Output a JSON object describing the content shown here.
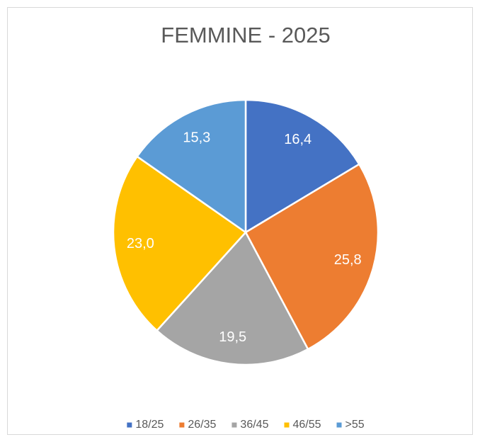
{
  "chart_data": {
    "type": "pie",
    "title": "FEMMINE - 2025",
    "categories": [
      "18/25",
      "26/35",
      "36/45",
      "46/55",
      ">55"
    ],
    "values": [
      16.4,
      25.8,
      19.5,
      23.0,
      15.3
    ],
    "value_labels": [
      "16,4",
      "25,8",
      "19,5",
      "23,0",
      "15,3"
    ],
    "colors": [
      "#4472c4",
      "#ed7d31",
      "#a5a5a5",
      "#ffc000",
      "#5b9bd5"
    ],
    "legend": "bottom"
  }
}
